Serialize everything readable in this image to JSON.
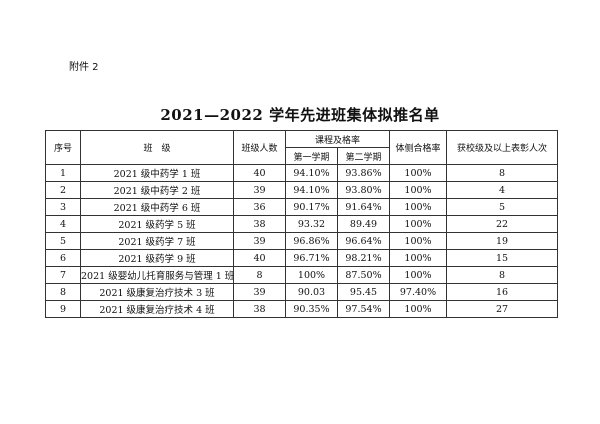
{
  "attachment_label": "附件 2",
  "title": "2021—2022 学年先进班集体拟推名单",
  "headers": {
    "index": "序号",
    "class": "班　级",
    "count": "班级人数",
    "pass_rate": "课程及格率",
    "term1": "第一学期",
    "term2": "第二学期",
    "pe_rate": "体侧合格率",
    "awards": "获校级及以上表彰人次"
  },
  "rows": [
    {
      "index": "1",
      "class": "2021 级中药学 1 班",
      "count": "40",
      "term1": "94.10%",
      "term2": "93.86%",
      "pe": "100%",
      "awards": "8"
    },
    {
      "index": "2",
      "class": "2021 级中药学 2 班",
      "count": "39",
      "term1": "94.10%",
      "term2": "93.80%",
      "pe": "100%",
      "awards": "4"
    },
    {
      "index": "3",
      "class": "2021 级中药学 6 班",
      "count": "36",
      "term1": "90.17%",
      "term2": "91.64%",
      "pe": "100%",
      "awards": "5"
    },
    {
      "index": "4",
      "class": "2021 级药学 5 班",
      "count": "38",
      "term1": "93.32",
      "term2": "89.49",
      "pe": "100%",
      "awards": "22"
    },
    {
      "index": "5",
      "class": "2021 级药学 7 班",
      "count": "39",
      "term1": "96.86%",
      "term2": "96.64%",
      "pe": "100%",
      "awards": "19"
    },
    {
      "index": "6",
      "class": "2021 级药学 9 班",
      "count": "40",
      "term1": "96.71%",
      "term2": "98.21%",
      "pe": "100%",
      "awards": "15"
    },
    {
      "index": "7",
      "class": "2021 级婴幼儿托育服务与管理 1 班",
      "count": "8",
      "term1": "100%",
      "term2": "87.50%",
      "pe": "100%",
      "awards": "8"
    },
    {
      "index": "8",
      "class": "2021 级康复治疗技术 3 班",
      "count": "39",
      "term1": "90.03",
      "term2": "95.45",
      "pe": "97.40%",
      "awards": "16"
    },
    {
      "index": "9",
      "class": "2021 级康复治疗技术 4 班",
      "count": "38",
      "term1": "90.35%",
      "term2": "97.54%",
      "pe": "100%",
      "awards": "27"
    }
  ]
}
